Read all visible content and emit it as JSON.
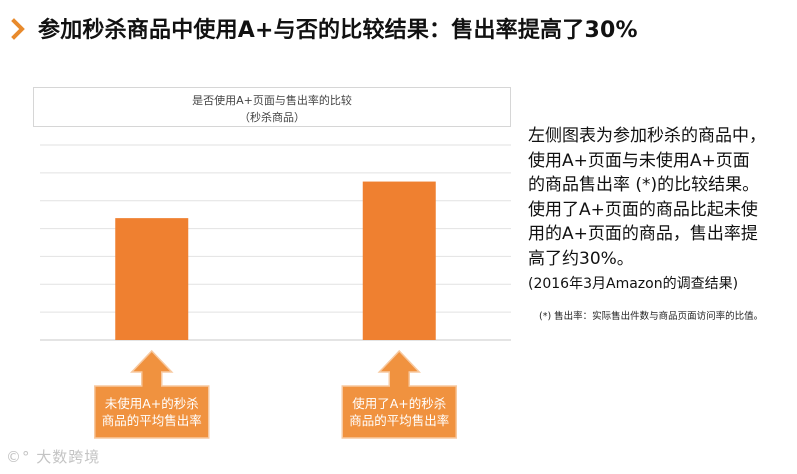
{
  "header": {
    "title": "参加秒杀商品中使用A+与否的比较结果：售出率提高了30%",
    "icon": "chevron-right-icon",
    "accent_color": "#E88A2C"
  },
  "chart_data": {
    "type": "bar",
    "title": "是否使用A+页面与售出率的比较",
    "subtitle": "（秒杀商品）",
    "categories": [
      "未使用A+的秒杀\n商品的平均售出率",
      "使用了A+的秒杀\n商品的平均售出率"
    ],
    "values": [
      100,
      130
    ],
    "ylim": [
      0,
      160
    ],
    "grid": true,
    "bar_color": "#EF8030",
    "callout_color": "#F0923F",
    "callout_border": "#F7C9A0"
  },
  "description": {
    "text": "左侧图表为参加秒杀的商品中，\n使用A+页面与未使用A+页面\n的商品售出率 (*)的比较结果。\n使用了A+页面的商品比起未使\n用的A+页面的商品，售出率提\n高了约30%。",
    "source": "(2016年3月Amazon的调查结果)",
    "footnote": "(*) 售出率：实际售出件数与商品页面访问率的比值。"
  },
  "watermark": {
    "text": "大数跨境"
  }
}
